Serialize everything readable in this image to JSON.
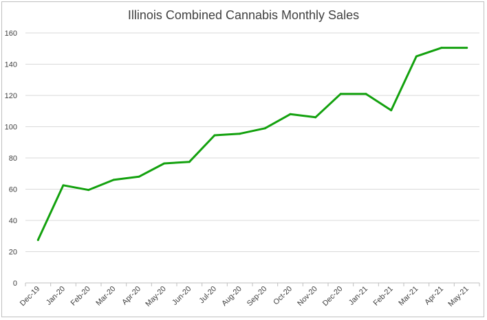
{
  "chart_data": {
    "type": "line",
    "title": "Illinois Combined Cannabis Monthly Sales",
    "xlabel": "",
    "ylabel": "",
    "categories": [
      "Dec-19",
      "Jan-20",
      "Feb-20",
      "Mar-20",
      "Apr-20",
      "May-20",
      "Jun-20",
      "Jul-20",
      "Aug-20",
      "Sep-20",
      "Oct-20",
      "Nov-20",
      "Dec-20",
      "Jan-21",
      "Feb-21",
      "Mar-21",
      "Apr-21",
      "May-21"
    ],
    "series": [
      {
        "color": "#13a10e",
        "values": [
          27.5,
          62.5,
          59.5,
          66,
          68,
          76.5,
          77.5,
          94.5,
          95.5,
          99,
          108,
          106,
          121,
          121,
          110.5,
          145,
          150.5,
          150.5
        ]
      }
    ],
    "ylim": [
      0,
      160
    ],
    "yticks": [
      0,
      20,
      40,
      60,
      80,
      100,
      120,
      140,
      160
    ],
    "grid": true,
    "legend": "none"
  }
}
